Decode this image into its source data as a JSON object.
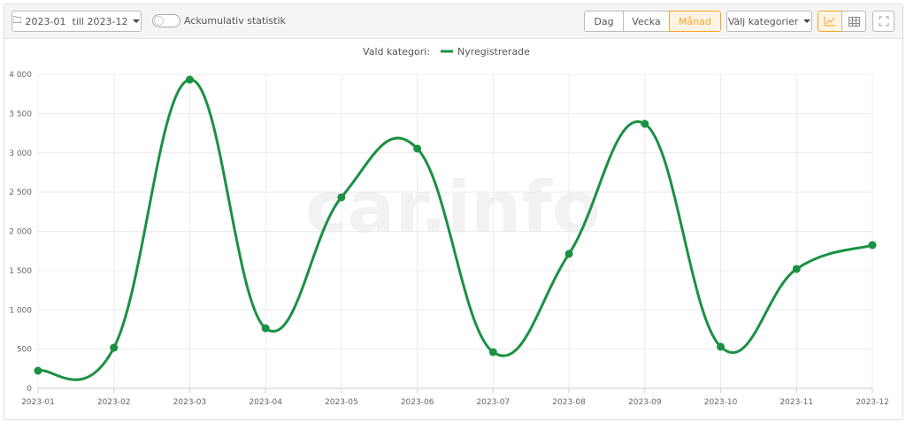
{
  "toolbar": {
    "date_range": "2023-01  till 2023-12",
    "cumulative_label": "Ackumulativ statistik",
    "period_buttons": [
      "Dag",
      "Vecka",
      "Månad"
    ],
    "active_period": "Månad",
    "category_select": "Välj kategorier",
    "accent_color": "#f5a623"
  },
  "legend": {
    "prefix": "Vald kategori:"
  },
  "watermark": "car.info",
  "chart_data": {
    "type": "line",
    "smooth": true,
    "categories": [
      "2023-01",
      "2023-02",
      "2023-03",
      "2023-04",
      "2023-05",
      "2023-06",
      "2023-07",
      "2023-08",
      "2023-09",
      "2023-10",
      "2023-11",
      "2023-12"
    ],
    "series": [
      {
        "name": "Nyregistrerade",
        "color": "#1a9143",
        "values": [
          225,
          518,
          3932,
          766,
          2434,
          3054,
          462,
          1713,
          3369,
          530,
          1521,
          1825
        ]
      }
    ],
    "ylim": [
      0,
      4000
    ],
    "yticks": [
      0,
      500,
      1000,
      1500,
      2000,
      2500,
      3000,
      3500,
      4000
    ],
    "ytick_labels": [
      "0",
      "500",
      "1 000",
      "1 500",
      "2 000",
      "2 500",
      "3 000",
      "3 500",
      "4 000"
    ],
    "grid": true,
    "legend_position": "top-center"
  }
}
